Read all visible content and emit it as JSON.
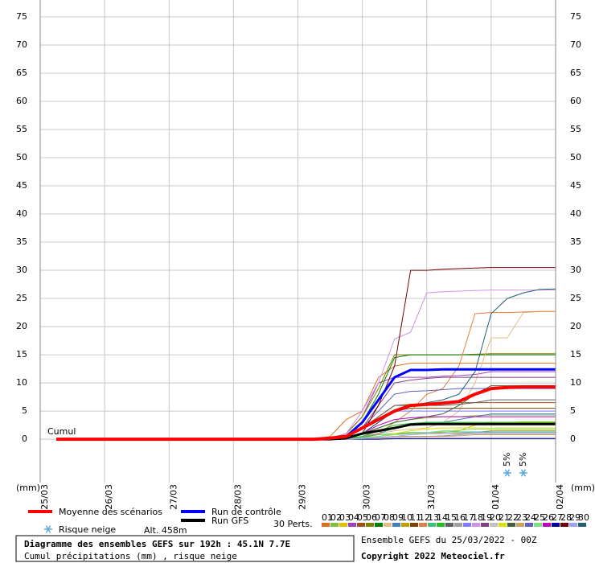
{
  "chart_data": {
    "type": "line",
    "title": "Diagramme des ensembles GEFS sur 192h : 45.1N 7.7E",
    "subtitle": "Cumul précipitations (mm) , risque neige",
    "run_info": "Ensemble GEFS du 25/03/2022 - 00Z",
    "copyright": "Copyright 2022 Meteociel.fr",
    "y_label": "(mm)",
    "annotation": "Cumul",
    "snow_legend": "Risque neige",
    "altitude": "Alt. 458m",
    "perturbations_label": "30 Perts.",
    "grid": true,
    "xlim": [
      0,
      192
    ],
    "xticks": [
      {
        "value": 0,
        "label": "25/03"
      },
      {
        "value": 24,
        "label": "26/03"
      },
      {
        "value": 48,
        "label": "27/03"
      },
      {
        "value": 72,
        "label": "28/03"
      },
      {
        "value": 96,
        "label": "29/03"
      },
      {
        "value": 120,
        "label": "30/03"
      },
      {
        "value": 144,
        "label": "31/03"
      },
      {
        "value": 168,
        "label": "01/04"
      },
      {
        "value": 192,
        "label": "02/04"
      }
    ],
    "ylim": [
      -7.7,
      78
    ],
    "yticks": [
      0,
      5,
      10,
      15,
      20,
      25,
      30,
      35,
      40,
      45,
      50,
      55,
      60,
      65,
      70,
      75
    ],
    "x": [
      6,
      12,
      18,
      24,
      30,
      36,
      42,
      48,
      54,
      60,
      66,
      72,
      78,
      84,
      90,
      96,
      102,
      108,
      114,
      120,
      126,
      132,
      138,
      144,
      150,
      156,
      162,
      168,
      174,
      180,
      186,
      192
    ],
    "snow_risk": {
      "x": [
        174,
        180
      ],
      "values": [
        5,
        5
      ],
      "value_labels": [
        "5%",
        "5%"
      ]
    },
    "series": [
      {
        "name": "Moyenne des scénarios",
        "color": "#ff0000",
        "values": [
          0,
          0,
          0,
          0,
          0,
          0,
          0,
          0,
          0,
          0,
          0,
          0,
          0,
          0,
          0,
          0,
          0,
          0.2,
          0.5,
          2,
          3.5,
          5,
          6,
          6.2,
          6.4,
          6.7,
          8,
          9,
          9.2,
          9.3,
          9.3,
          9.3
        ]
      },
      {
        "name": "Run de contrôle",
        "color": "#0000ff",
        "values": [
          0,
          0,
          0,
          0,
          0,
          0,
          0,
          0,
          0,
          0,
          0,
          0,
          0,
          0,
          0,
          0,
          0,
          0.1,
          0.5,
          3,
          7,
          11,
          12.3,
          12.3,
          12.4,
          12.4,
          12.4,
          12.4,
          12.4,
          12.4,
          12.4,
          12.4
        ]
      },
      {
        "name": "Run GFS",
        "color": "#000000",
        "values": [
          0,
          0,
          0,
          0,
          0,
          0,
          0,
          0,
          0,
          0,
          0,
          0,
          0,
          0,
          0,
          0,
          0,
          0,
          0.2,
          1,
          1.5,
          2,
          2.6,
          2.7,
          2.7,
          2.7,
          2.7,
          2.7,
          2.7,
          2.7,
          2.7,
          2.7
        ]
      },
      {
        "name": "01",
        "color": "#e07020",
        "values": [
          0,
          0,
          0,
          0,
          0,
          0,
          0,
          0,
          0,
          0,
          0,
          0,
          0,
          0,
          0,
          0,
          0,
          0.5,
          3.5,
          5,
          11,
          13,
          13.5,
          13.5,
          13.5,
          13.5,
          13.5,
          13.5,
          13.5,
          13.5,
          13.5,
          13.5
        ]
      },
      {
        "name": "02",
        "color": "#80c040",
        "values": [
          0,
          0,
          0,
          0,
          0,
          0,
          0,
          0,
          0,
          0,
          0,
          0,
          0,
          0,
          0,
          0,
          0,
          0,
          0.3,
          1,
          2,
          3,
          3.5,
          3.8,
          4,
          4,
          4.2,
          4.3,
          4.3,
          4.3,
          4.3,
          4.3
        ]
      },
      {
        "name": "03",
        "color": "#e0c000",
        "values": [
          0,
          0,
          0,
          0,
          0,
          0,
          0,
          0,
          0,
          0,
          0,
          0,
          0,
          0,
          0,
          0,
          0,
          0,
          0,
          0.2,
          0.5,
          0.8,
          1,
          1,
          1.2,
          1.5,
          2.5,
          3,
          3,
          3.1,
          3.1,
          3.1
        ]
      },
      {
        "name": "04",
        "color": "#a040c0",
        "values": [
          0,
          0,
          0,
          0,
          0,
          0,
          0,
          0,
          0,
          0,
          0,
          0,
          0,
          0,
          0,
          0,
          0,
          0.2,
          1,
          4,
          10,
          11,
          11,
          11,
          11.2,
          11.3,
          11.5,
          12,
          12,
          12,
          12,
          12
        ]
      },
      {
        "name": "05",
        "color": "#a05020",
        "values": [
          0,
          0,
          0,
          0,
          0,
          0,
          0,
          0,
          0,
          0,
          0,
          0,
          0,
          0,
          0,
          0,
          0,
          0,
          0.5,
          2,
          4,
          6,
          6.2,
          6.3,
          6.3,
          6.5,
          6.5,
          6.5,
          6.5,
          6.5,
          6.5,
          6.5
        ]
      },
      {
        "name": "06",
        "color": "#808000",
        "values": [
          0,
          0,
          0,
          0,
          0,
          0,
          0,
          0,
          0,
          0,
          0,
          0,
          0,
          0,
          0,
          0,
          0,
          0,
          1,
          4,
          9,
          15,
          15,
          15,
          15,
          15,
          15.1,
          15.2,
          15.2,
          15.2,
          15.2,
          15.2
        ]
      },
      {
        "name": "07",
        "color": "#008000",
        "values": [
          0,
          0,
          0,
          0,
          0,
          0,
          0,
          0,
          0,
          0,
          0,
          0,
          0,
          0,
          0,
          0,
          0,
          0,
          0.5,
          3,
          8,
          14.5,
          15,
          15,
          15,
          15,
          15,
          15,
          15,
          15,
          15,
          15
        ]
      },
      {
        "name": "08",
        "color": "#e0c080",
        "values": [
          0,
          0,
          0,
          0,
          0,
          0,
          0,
          0,
          0,
          0,
          0,
          0,
          0,
          0,
          0,
          0,
          0,
          0,
          0,
          0.5,
          1,
          1.5,
          1.8,
          2,
          3,
          5,
          10,
          18,
          18,
          22.5,
          22.7,
          22.7
        ]
      },
      {
        "name": "09",
        "color": "#4080c0",
        "values": [
          0,
          0,
          0,
          0,
          0,
          0,
          0,
          0,
          0,
          0,
          0,
          0,
          0,
          0,
          0,
          0,
          0,
          0,
          0,
          0.3,
          1,
          2,
          2.5,
          3,
          3,
          3.5,
          4,
          4.5,
          4.5,
          4.5,
          4.5,
          4.5
        ]
      },
      {
        "name": "10",
        "color": "#c0a000",
        "values": [
          0,
          0,
          0,
          0,
          0,
          0,
          0,
          0,
          0,
          0,
          0,
          0,
          0,
          0,
          0,
          0,
          0,
          0,
          0,
          0.2,
          0.5,
          1,
          1,
          1,
          1,
          1,
          1.2,
          1.5,
          1.5,
          1.5,
          1.5,
          1.5
        ]
      },
      {
        "name": "11",
        "color": "#804000",
        "values": [
          0,
          0,
          0,
          0,
          0,
          0,
          0,
          0,
          0,
          0,
          0,
          0,
          0,
          0,
          0,
          0,
          0,
          0,
          0.2,
          1,
          3,
          5,
          5.5,
          5.5,
          5.5,
          5.5,
          5.5,
          5.5,
          5.5,
          5.5,
          5.5,
          5.5
        ]
      },
      {
        "name": "12",
        "color": "#e08040",
        "values": [
          0,
          0,
          0,
          0,
          0,
          0,
          0,
          0,
          0,
          0,
          0,
          0,
          0,
          0,
          0,
          0,
          0,
          0,
          0,
          0.5,
          1,
          3,
          5,
          8,
          9,
          13,
          22.3,
          22.5,
          22.5,
          22.6,
          22.7,
          22.7
        ]
      },
      {
        "name": "13",
        "color": "#40c080",
        "values": [
          0,
          0,
          0,
          0,
          0,
          0,
          0,
          0,
          0,
          0,
          0,
          0,
          0,
          0,
          0,
          0,
          0,
          0,
          0,
          0.3,
          0.8,
          1,
          1.2,
          1.2,
          1.3,
          1.3,
          1.3,
          1.3,
          1.3,
          1.3,
          1.3,
          1.3
        ]
      },
      {
        "name": "14",
        "color": "#20c020",
        "values": [
          0,
          0,
          0,
          0,
          0,
          0,
          0,
          0,
          0,
          0,
          0,
          0,
          0,
          0,
          0,
          0,
          0,
          0,
          0.2,
          0.5,
          1.5,
          2.5,
          2.8,
          3,
          3,
          3,
          3,
          3,
          3,
          3,
          3,
          3
        ]
      },
      {
        "name": "15",
        "color": "#606060",
        "values": [
          0,
          0,
          0,
          0,
          0,
          0,
          0,
          0,
          0,
          0,
          0,
          0,
          0,
          0,
          0,
          0,
          0,
          0,
          0.5,
          2,
          4,
          6,
          6,
          6,
          6,
          6.2,
          6.5,
          7,
          7,
          7,
          7,
          7
        ]
      },
      {
        "name": "16",
        "color": "#a0a0a0",
        "values": [
          0,
          0,
          0,
          0,
          0,
          0,
          0,
          0,
          0,
          0,
          0,
          0,
          0,
          0,
          0,
          0,
          0,
          0,
          0,
          0.1,
          0.3,
          0.5,
          0.5,
          0.5,
          0.6,
          0.8,
          1,
          1,
          1,
          1,
          1,
          1
        ]
      },
      {
        "name": "17",
        "color": "#8080ff",
        "values": [
          0,
          0,
          0,
          0,
          0,
          0,
          0,
          0,
          0,
          0,
          0,
          0,
          0,
          0,
          0,
          0,
          0,
          0,
          0.2,
          1,
          3,
          5,
          5,
          5,
          5,
          5,
          5,
          5,
          5,
          5,
          5,
          5
        ]
      },
      {
        "name": "18",
        "color": "#d090e8",
        "values": [
          0,
          0,
          0,
          0,
          0,
          0,
          0,
          0,
          0,
          0,
          0,
          0,
          0,
          0,
          0,
          0,
          0,
          0,
          1,
          5,
          10,
          17.8,
          19,
          26,
          26.2,
          26.3,
          26.4,
          26.5,
          26.5,
          26.5,
          26.5,
          26.5
        ]
      },
      {
        "name": "19",
        "color": "#804080",
        "values": [
          0,
          0,
          0,
          0,
          0,
          0,
          0,
          0,
          0,
          0,
          0,
          0,
          0,
          0,
          0,
          0,
          0,
          0,
          0.5,
          2,
          6,
          10,
          10.5,
          10.8,
          11,
          11,
          11,
          11,
          11,
          11,
          11,
          11
        ]
      },
      {
        "name": "20",
        "color": "#c0c0c0",
        "values": [
          0,
          0,
          0,
          0,
          0,
          0,
          0,
          0,
          0,
          0,
          0,
          0,
          0,
          0,
          0,
          0,
          0,
          0,
          0,
          0,
          0.1,
          0.2,
          0.3,
          0.3,
          0.3,
          0.3,
          0.3,
          0.3,
          0.3,
          0.3,
          0.3,
          0.3
        ]
      },
      {
        "name": "21",
        "color": "#e0e000",
        "values": [
          0,
          0,
          0,
          0,
          0,
          0,
          0,
          0,
          0,
          0,
          0,
          0,
          0,
          0,
          0,
          0,
          0,
          0,
          0,
          0.2,
          0.5,
          1,
          1.5,
          1.8,
          2,
          2,
          2,
          2,
          2,
          2,
          2,
          2
        ]
      },
      {
        "name": "22",
        "color": "#406040",
        "values": [
          0,
          0,
          0,
          0,
          0,
          0,
          0,
          0,
          0,
          0,
          0,
          0,
          0,
          0,
          0,
          0,
          0,
          0,
          0.2,
          1,
          2,
          3,
          3.5,
          4,
          4.5,
          6,
          8,
          9.5,
          9.5,
          9.5,
          9.5,
          9.5
        ]
      },
      {
        "name": "23",
        "color": "#d0a060",
        "values": [
          0,
          0,
          0,
          0,
          0,
          0,
          0,
          0,
          0,
          0,
          0,
          0,
          0,
          0,
          0,
          0,
          0,
          0,
          0,
          0.1,
          0.2,
          0.4,
          0.5,
          0.5,
          0.5,
          0.6,
          0.8,
          0.8,
          0.8,
          0.8,
          0.8,
          0.8
        ]
      },
      {
        "name": "24",
        "color": "#6060c0",
        "values": [
          0,
          0,
          0,
          0,
          0,
          0,
          0,
          0,
          0,
          0,
          0,
          0,
          0,
          0,
          0,
          0,
          0,
          0,
          0.5,
          2,
          5,
          8,
          8.5,
          8.6,
          8.8,
          9,
          9,
          9,
          9,
          9,
          9,
          9
        ]
      },
      {
        "name": "25",
        "color": "#80e080",
        "values": [
          0,
          0,
          0,
          0,
          0,
          0,
          0,
          0,
          0,
          0,
          0,
          0,
          0,
          0,
          0,
          0,
          0,
          0,
          0,
          0.2,
          0.5,
          0.8,
          1,
          1.2,
          1.5,
          1.6,
          1.8,
          1.8,
          1.8,
          1.8,
          1.8,
          1.8
        ]
      },
      {
        "name": "26",
        "color": "#c000c0",
        "values": [
          0,
          0,
          0,
          0,
          0,
          0,
          0,
          0,
          0,
          0,
          0,
          0,
          0,
          0,
          0,
          0,
          0,
          0,
          0.2,
          1,
          2.5,
          3.5,
          3.8,
          4,
          4,
          4,
          4,
          4,
          4,
          4,
          4,
          4
        ]
      },
      {
        "name": "27",
        "color": "#0000a0",
        "values": [
          0,
          0,
          0,
          0,
          0,
          0,
          0,
          0,
          0,
          0,
          0,
          0,
          0,
          0,
          0,
          0,
          0,
          0,
          0,
          0,
          0,
          0.1,
          0.1,
          0.1,
          0.1,
          0.1,
          0.1,
          0.1,
          0.1,
          0.1,
          0.1,
          0.1
        ]
      },
      {
        "name": "28",
        "color": "#700000",
        "values": [
          0,
          0,
          0,
          0,
          0,
          0,
          0,
          0,
          0,
          0,
          0,
          0,
          0,
          0,
          0,
          0,
          0,
          0,
          0,
          1,
          6,
          13,
          30,
          30,
          30.2,
          30.3,
          30.4,
          30.5,
          30.5,
          30.5,
          30.5,
          30.5
        ]
      },
      {
        "name": "29",
        "color": "#a0a0ff",
        "values": [
          0,
          0,
          0,
          0,
          0,
          0,
          0,
          0,
          0,
          0,
          0,
          0,
          0,
          0,
          0,
          0,
          0,
          0,
          0,
          0.1,
          0.3,
          0.5,
          0.8,
          1,
          1,
          1.1,
          1.2,
          1.2,
          1.2,
          1.2,
          1.2,
          1.2
        ]
      },
      {
        "name": "30",
        "color": "#206070",
        "values": [
          0,
          0,
          0,
          0,
          0,
          0,
          0,
          0,
          0,
          0,
          0,
          0,
          0,
          0,
          0,
          0,
          0,
          0,
          0.2,
          1,
          3,
          5,
          6,
          6.5,
          7,
          8,
          12,
          22.3,
          25,
          26,
          26.6,
          26.7
        ]
      }
    ]
  }
}
